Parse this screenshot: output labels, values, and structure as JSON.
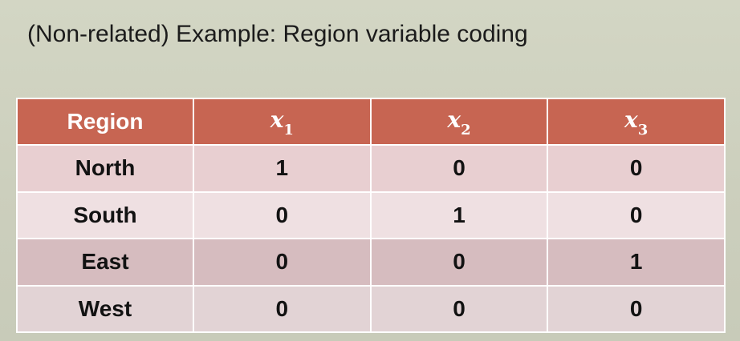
{
  "slide": {
    "title": "(Non-related) Example: Region variable coding"
  },
  "table": {
    "header": {
      "region": "Region",
      "vars": [
        {
          "symbol": "x",
          "sub": "1"
        },
        {
          "symbol": "x",
          "sub": "2"
        },
        {
          "symbol": "x",
          "sub": "3"
        }
      ]
    },
    "rows": [
      {
        "region": "North",
        "values": [
          "1",
          "0",
          "0"
        ]
      },
      {
        "region": "South",
        "values": [
          "0",
          "1",
          "0"
        ]
      },
      {
        "region": "East",
        "values": [
          "0",
          "0",
          "1"
        ]
      },
      {
        "region": "West",
        "values": [
          "0",
          "0",
          "0"
        ]
      }
    ]
  },
  "colors": {
    "header_bg": "#c76552",
    "row_odd": "#e8cfd1",
    "row_even": "#efe0e2",
    "slide_bg": "#d3d6c4"
  }
}
